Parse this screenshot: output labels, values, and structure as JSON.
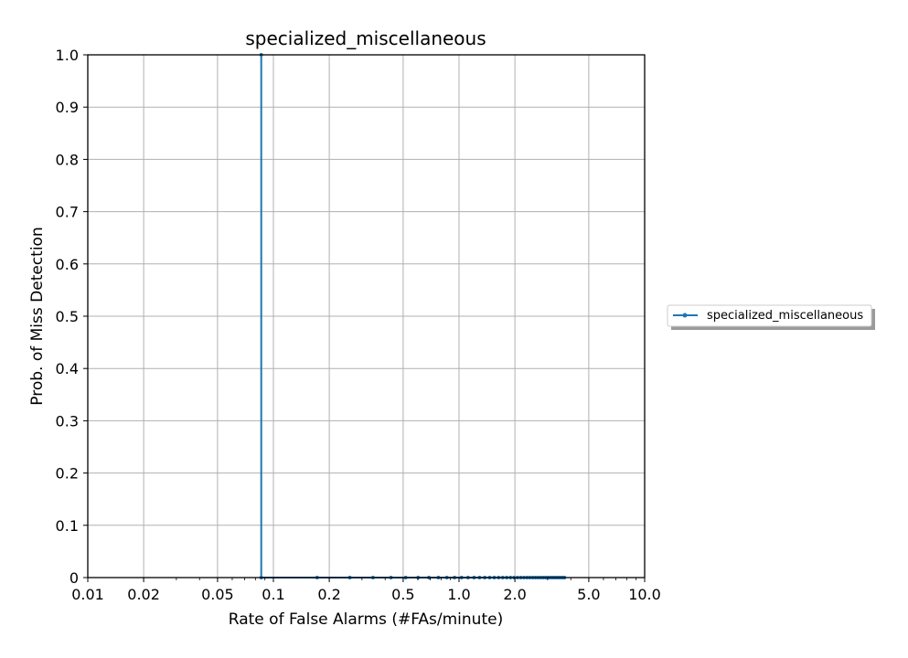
{
  "chart_data": {
    "type": "line",
    "title": "specialized_miscellaneous",
    "xlabel": "Rate of False Alarms (#FAs/minute)",
    "ylabel": "Prob. of Miss Detection",
    "xscale": "log",
    "xlim": [
      0.01,
      10.0
    ],
    "ylim": [
      0,
      1.0
    ],
    "xticks": [
      0.01,
      0.02,
      0.05,
      0.1,
      0.2,
      0.5,
      1.0,
      2.0,
      5.0,
      10.0
    ],
    "xtick_labels": [
      "0.01",
      "0.02",
      "0.05",
      "0.1",
      "0.2",
      "0.5",
      "1.0",
      "2.0",
      "5.0",
      "10.0"
    ],
    "yticks": [
      0,
      0.1,
      0.2,
      0.3,
      0.4,
      0.5,
      0.6,
      0.7,
      0.8,
      0.9,
      1.0
    ],
    "ytick_labels": [
      "0",
      "0.1",
      "0.2",
      "0.3",
      "0.4",
      "0.5",
      "0.6",
      "0.7",
      "0.8",
      "0.9",
      "1.0"
    ],
    "grid": true,
    "legend_position": "right",
    "series": [
      {
        "name": "specialized_miscellaneous",
        "color": "#1f77b4",
        "x": [
          0.086,
          0.086,
          0.172,
          0.258,
          0.344,
          0.43,
          0.516,
          0.602,
          0.688,
          0.774,
          0.86,
          0.946,
          1.032,
          1.118,
          1.204,
          1.29,
          1.376,
          1.462,
          1.548,
          1.634,
          1.72,
          1.806,
          1.892,
          1.978,
          2.064,
          2.15,
          2.236,
          2.322,
          2.408,
          2.494,
          2.58,
          2.666,
          2.752,
          2.838,
          2.924,
          3.01,
          3.096,
          3.182,
          3.268,
          3.354,
          3.44,
          3.526,
          3.612,
          3.698
        ],
        "y": [
          1.0,
          0.0,
          0.0,
          0.0,
          0.0,
          0.0,
          0.0,
          0.0,
          0.0,
          0.0,
          0.0,
          0.0,
          0.0,
          0.0,
          0.0,
          0.0,
          0.0,
          0.0,
          0.0,
          0.0,
          0.0,
          0.0,
          0.0,
          0.0,
          0.0,
          0.0,
          0.0,
          0.0,
          0.0,
          0.0,
          0.0,
          0.0,
          0.0,
          0.0,
          0.0,
          0.0,
          0.0,
          0.0,
          0.0,
          0.0,
          0.0,
          0.0,
          0.0,
          0.0
        ]
      }
    ]
  }
}
